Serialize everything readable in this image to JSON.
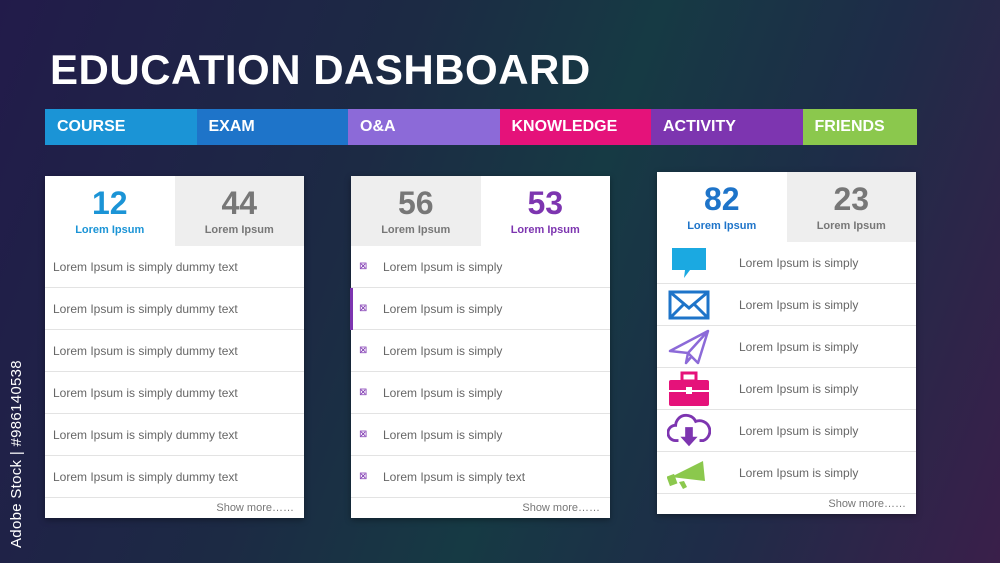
{
  "title": "EDUCATION DASHBOARD",
  "tabs": [
    "COURSE",
    "EXAM",
    "O&A",
    "KNOWLEDGE",
    "ACTIVITY",
    "FRIENDS"
  ],
  "colors": {
    "course": "#1b94d6",
    "exam": "#1e74c9",
    "oa": "#8c6ad8",
    "knowledge": "#e5127a",
    "activity": "#7d35b0",
    "friends": "#8bc84d"
  },
  "card1": {
    "stats": [
      {
        "value": "12",
        "label": "Lorem Ipsum"
      },
      {
        "value": "44",
        "label": "Lorem Ipsum"
      }
    ],
    "rows": [
      "Lorem Ipsum is simply dummy text",
      "Lorem Ipsum is simply dummy text",
      "Lorem Ipsum is simply dummy text",
      "Lorem Ipsum is simply dummy text",
      "Lorem Ipsum is simply dummy text",
      "Lorem Ipsum is simply dummy text"
    ],
    "more": "Show more……"
  },
  "card2": {
    "stats": [
      {
        "value": "56",
        "label": "Lorem Ipsum"
      },
      {
        "value": "53",
        "label": "Lorem Ipsum"
      }
    ],
    "rows": [
      "Lorem Ipsum is simply",
      "Lorem Ipsum is simply",
      "Lorem Ipsum is simply",
      "Lorem Ipsum is simply",
      "Lorem Ipsum is simply",
      "Lorem Ipsum is simply text"
    ],
    "more": "Show more……"
  },
  "card3": {
    "stats": [
      {
        "value": "82",
        "label": "Lorem Ipsum"
      },
      {
        "value": "23",
        "label": "Lorem Ipsum"
      }
    ],
    "rows": [
      {
        "icon": "chat-bubble-icon",
        "text": "Lorem Ipsum is simply"
      },
      {
        "icon": "envelope-icon",
        "text": "Lorem Ipsum is simply"
      },
      {
        "icon": "paper-plane-icon",
        "text": "Lorem Ipsum is simply"
      },
      {
        "icon": "briefcase-icon",
        "text": "Lorem Ipsum is simply"
      },
      {
        "icon": "cloud-download-icon",
        "text": "Lorem Ipsum is simply"
      },
      {
        "icon": "megaphone-icon",
        "text": "Lorem Ipsum is simply"
      }
    ],
    "more": "Show more……"
  },
  "side_credit": "Adobe Stock | #986140538"
}
